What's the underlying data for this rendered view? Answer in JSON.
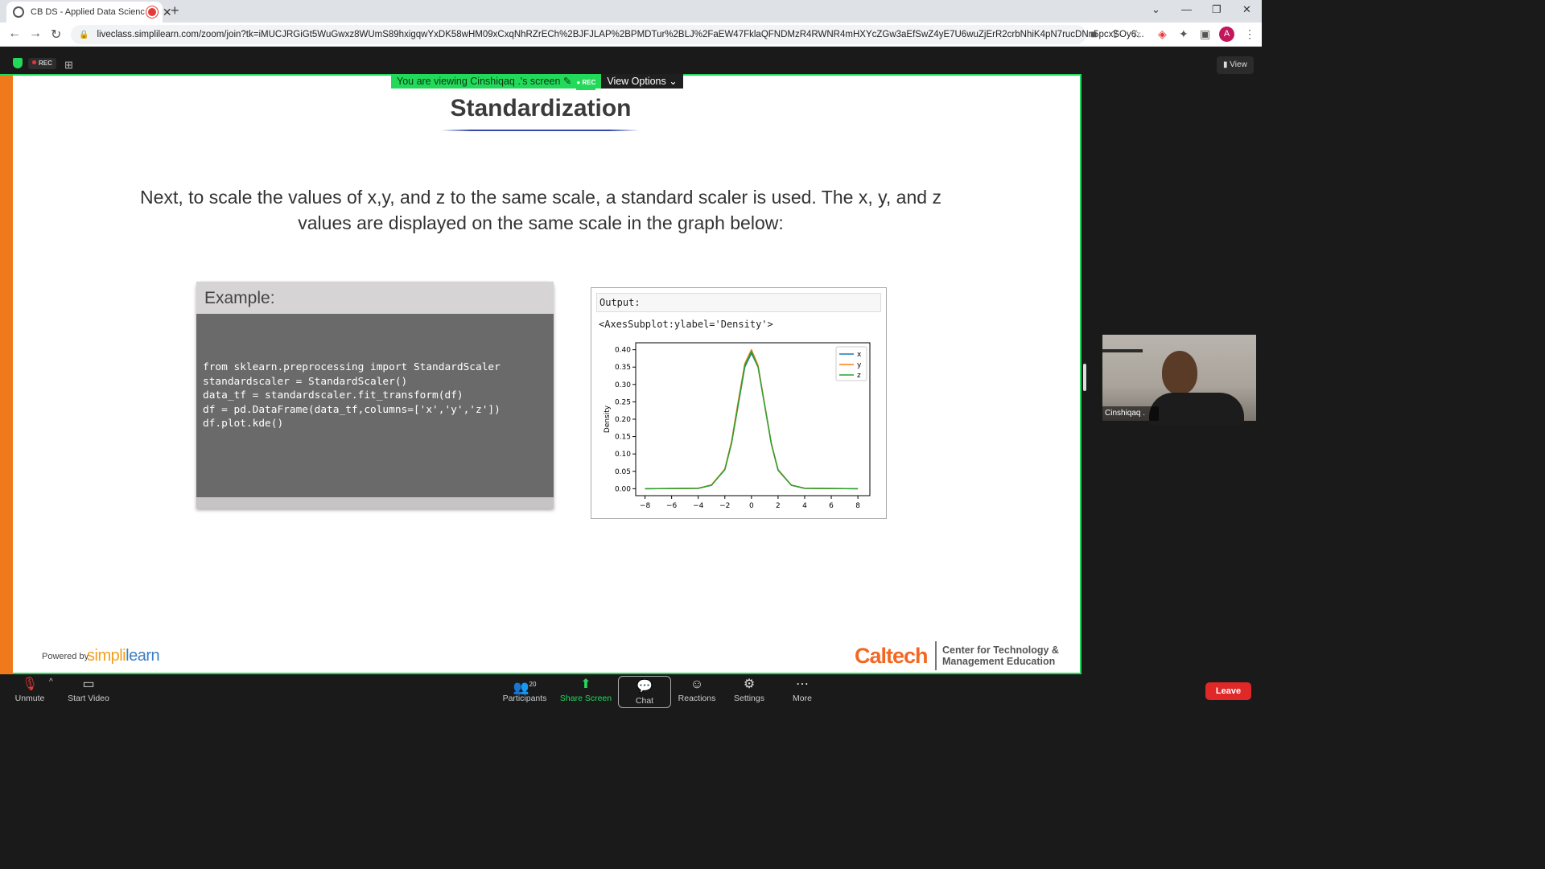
{
  "browser": {
    "tab_title": "CB DS - Applied Data Scienc",
    "url": "liveclass.simplilearn.com/zoom/join?tk=iMUCJRGiGt5WuGwxz8WUmS89hxigqwYxDK58wHM09xCxqNhRZrECh%2BJFJLAP%2BPMDTur%2BLJ%2FaEW47FklaQFNDMzR4RWNR4mHXYcZGw3aEfSwZ4yE7U6wuZjErR2crbNhiK4pN7rucDNn5pcxSOy6...",
    "profile_initial": "A"
  },
  "zoom": {
    "rec_label": "REC",
    "view_label": "View",
    "viewing_text": "You are viewing Cinshiqaq .'s screen",
    "viewing_rec": "REC",
    "view_options_label": "View Options",
    "participant_name": "Cinshiqaq .",
    "participant_count": "20",
    "toolbar": {
      "unmute": "Unmute",
      "start_video": "Start Video",
      "participants": "Participants",
      "share_screen": "Share Screen",
      "chat": "Chat",
      "reactions": "Reactions",
      "settings": "Settings",
      "more": "More",
      "leave": "Leave"
    }
  },
  "slide": {
    "title": "Standardization",
    "body": "Next, to scale the values of x,y, and z to the same scale, a standard scaler is used. The x, y, and z values are displayed on the same scale in the graph below:",
    "example_heading": "Example:",
    "code": "from sklearn.preprocessing import StandardScaler\nstandardscaler = StandardScaler()\ndata_tf = standardscaler.fit_transform(df)\ndf = pd.DataFrame(data_tf,columns=['x','y','z'])\ndf.plot.kde()",
    "output_heading": "Output:",
    "output_repr": "<AxesSubplot:ylabel='Density'>",
    "powered_by": "Powered by",
    "brand_simpli": "simpli",
    "brand_learn": "learn",
    "caltech": "Caltech",
    "ctme_line1": "Center for Technology &",
    "ctme_line2": "Management Education"
  },
  "chart_data": {
    "type": "line",
    "title": "",
    "xlabel": "",
    "ylabel": "Density",
    "xlim": [
      -8.7,
      8.9
    ],
    "ylim": [
      -0.02,
      0.42
    ],
    "xticks": [
      -8,
      -6,
      -4,
      -2,
      0,
      2,
      4,
      6,
      8
    ],
    "xtick_labels": [
      "−8",
      "−6",
      "−4",
      "−2",
      "0",
      "2",
      "4",
      "6",
      "8"
    ],
    "yticks": [
      0.0,
      0.05,
      0.1,
      0.15,
      0.2,
      0.25,
      0.3,
      0.35,
      0.4
    ],
    "ytick_labels": [
      "0.00",
      "0.05",
      "0.10",
      "0.15",
      "0.20",
      "0.25",
      "0.30",
      "0.35",
      "0.40"
    ],
    "legend_position": "top-right",
    "x": [
      -8,
      -4,
      -3,
      -2,
      -1.5,
      -1,
      -0.5,
      0,
      0.5,
      1,
      1.5,
      2,
      3,
      4,
      8
    ],
    "series": [
      {
        "name": "x",
        "color": "#1f77b4",
        "values": [
          0.0,
          0.001,
          0.01,
          0.055,
          0.13,
          0.24,
          0.35,
          0.39,
          0.35,
          0.24,
          0.13,
          0.055,
          0.01,
          0.001,
          0.0
        ]
      },
      {
        "name": "y",
        "color": "#ff7f0e",
        "values": [
          0.0,
          0.001,
          0.011,
          0.057,
          0.135,
          0.25,
          0.36,
          0.4,
          0.355,
          0.24,
          0.13,
          0.054,
          0.01,
          0.001,
          0.0
        ]
      },
      {
        "name": "z",
        "color": "#2ca02c",
        "values": [
          0.0,
          0.001,
          0.01,
          0.055,
          0.13,
          0.242,
          0.355,
          0.395,
          0.35,
          0.238,
          0.128,
          0.053,
          0.01,
          0.001,
          0.0
        ]
      }
    ]
  }
}
